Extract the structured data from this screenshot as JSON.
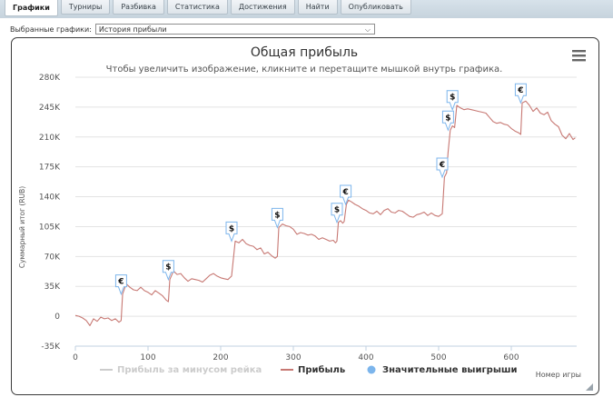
{
  "tabs": [
    "Графики",
    "Турниры",
    "Разбивка",
    "Статистика",
    "Достижения",
    "Найти",
    "Опубликовать"
  ],
  "active_tab": 0,
  "selector": {
    "label": "Выбранные графики:",
    "value": "История прибыли"
  },
  "chart_data": {
    "type": "line",
    "title": "Общая прибыль",
    "subtitle": "Чтобы увеличить изображение, кликните и перетащите мышкой внутрь графика.",
    "ylabel": "Суммарный итог (RUB)",
    "xlabel": "Номер игры",
    "ylim": [
      -35000,
      280000
    ],
    "xlim": [
      0,
      690
    ],
    "yticks": [
      -35000,
      0,
      35000,
      70000,
      105000,
      140000,
      175000,
      210000,
      245000,
      280000
    ],
    "ytick_labels": [
      "-35K",
      "0",
      "35K",
      "70K",
      "105K",
      "140K",
      "175K",
      "210K",
      "245K",
      "280K"
    ],
    "xticks": [
      0,
      100,
      200,
      300,
      400,
      500,
      600
    ],
    "grid": "horizontal",
    "legend_position": "bottom",
    "legend": [
      {
        "name": "Прибыль за минусом рейка",
        "color": "#cccccc",
        "style": "line",
        "hidden": true
      },
      {
        "name": "Прибыль",
        "color": "#c77873",
        "style": "line"
      },
      {
        "name": "Значительные выигрыши",
        "color": "#7cb5ec",
        "style": "marker"
      }
    ],
    "series": [
      {
        "name": "Прибыль",
        "color": "#c77873",
        "points": [
          [
            0,
            1000
          ],
          [
            5,
            0
          ],
          [
            10,
            -2000
          ],
          [
            15,
            -5000
          ],
          [
            20,
            -11000
          ],
          [
            25,
            -3000
          ],
          [
            30,
            -6000
          ],
          [
            35,
            -1000
          ],
          [
            40,
            -3000
          ],
          [
            45,
            -2000
          ],
          [
            50,
            -5000
          ],
          [
            55,
            -3000
          ],
          [
            60,
            -7000
          ],
          [
            63,
            -5000
          ],
          [
            65,
            26000
          ],
          [
            70,
            38000
          ],
          [
            75,
            34000
          ],
          [
            80,
            31000
          ],
          [
            85,
            30000
          ],
          [
            90,
            34000
          ],
          [
            95,
            30000
          ],
          [
            100,
            28000
          ],
          [
            105,
            25000
          ],
          [
            110,
            30000
          ],
          [
            115,
            27000
          ],
          [
            120,
            24000
          ],
          [
            125,
            19000
          ],
          [
            128,
            17000
          ],
          [
            130,
            43000
          ],
          [
            135,
            53000
          ],
          [
            140,
            49000
          ],
          [
            145,
            50000
          ],
          [
            150,
            45000
          ],
          [
            155,
            41000
          ],
          [
            160,
            44000
          ],
          [
            165,
            43000
          ],
          [
            170,
            42000
          ],
          [
            175,
            40000
          ],
          [
            180,
            44000
          ],
          [
            185,
            48000
          ],
          [
            190,
            50000
          ],
          [
            195,
            47000
          ],
          [
            200,
            45000
          ],
          [
            205,
            44000
          ],
          [
            210,
            43000
          ],
          [
            215,
            47000
          ],
          [
            220,
            88000
          ],
          [
            225,
            86000
          ],
          [
            230,
            90000
          ],
          [
            235,
            85000
          ],
          [
            240,
            83000
          ],
          [
            245,
            82000
          ],
          [
            250,
            78000
          ],
          [
            255,
            80000
          ],
          [
            260,
            73000
          ],
          [
            265,
            75000
          ],
          [
            270,
            71000
          ],
          [
            275,
            68000
          ],
          [
            278,
            70000
          ],
          [
            280,
            104000
          ],
          [
            285,
            108000
          ],
          [
            290,
            106000
          ],
          [
            295,
            105000
          ],
          [
            300,
            102000
          ],
          [
            305,
            96000
          ],
          [
            310,
            98000
          ],
          [
            315,
            97000
          ],
          [
            320,
            95000
          ],
          [
            325,
            96000
          ],
          [
            330,
            94000
          ],
          [
            335,
            90000
          ],
          [
            340,
            92000
          ],
          [
            345,
            90000
          ],
          [
            350,
            88000
          ],
          [
            355,
            89000
          ],
          [
            358,
            86000
          ],
          [
            360,
            88000
          ],
          [
            362,
            110000
          ],
          [
            365,
            112000
          ],
          [
            368,
            109000
          ],
          [
            370,
            111000
          ],
          [
            373,
            131000
          ],
          [
            376,
            136000
          ],
          [
            380,
            134000
          ],
          [
            385,
            131000
          ],
          [
            390,
            129000
          ],
          [
            395,
            126000
          ],
          [
            400,
            124000
          ],
          [
            405,
            121000
          ],
          [
            410,
            120000
          ],
          [
            415,
            123000
          ],
          [
            420,
            119000
          ],
          [
            425,
            124000
          ],
          [
            430,
            126000
          ],
          [
            435,
            122000
          ],
          [
            440,
            121000
          ],
          [
            445,
            124000
          ],
          [
            450,
            123000
          ],
          [
            455,
            120000
          ],
          [
            460,
            117000
          ],
          [
            465,
            116000
          ],
          [
            470,
            119000
          ],
          [
            475,
            120000
          ],
          [
            480,
            122000
          ],
          [
            485,
            118000
          ],
          [
            490,
            121000
          ],
          [
            495,
            118000
          ],
          [
            500,
            117000
          ],
          [
            505,
            120000
          ],
          [
            508,
            163000
          ],
          [
            511,
            168000
          ],
          [
            513,
            192000
          ],
          [
            516,
            218000
          ],
          [
            519,
            223000
          ],
          [
            522,
            221000
          ],
          [
            525,
            247000
          ],
          [
            530,
            244000
          ],
          [
            535,
            242000
          ],
          [
            540,
            243000
          ],
          [
            545,
            242000
          ],
          [
            550,
            241000
          ],
          [
            555,
            240000
          ],
          [
            560,
            239000
          ],
          [
            565,
            238000
          ],
          [
            570,
            233000
          ],
          [
            575,
            228000
          ],
          [
            580,
            226000
          ],
          [
            585,
            227000
          ],
          [
            590,
            225000
          ],
          [
            595,
            224000
          ],
          [
            600,
            220000
          ],
          [
            605,
            217000
          ],
          [
            610,
            215000
          ],
          [
            613,
            213000
          ],
          [
            615,
            250000
          ],
          [
            620,
            252000
          ],
          [
            625,
            247000
          ],
          [
            630,
            240000
          ],
          [
            635,
            244000
          ],
          [
            640,
            238000
          ],
          [
            645,
            236000
          ],
          [
            650,
            239000
          ],
          [
            655,
            229000
          ],
          [
            660,
            225000
          ],
          [
            665,
            222000
          ],
          [
            670,
            212000
          ],
          [
            675,
            208000
          ],
          [
            680,
            214000
          ],
          [
            685,
            207000
          ],
          [
            688,
            209000
          ]
        ]
      }
    ],
    "flags": [
      {
        "x": 63,
        "y": 26000,
        "symbol": "€"
      },
      {
        "x": 128,
        "y": 43000,
        "symbol": "$"
      },
      {
        "x": 215,
        "y": 88000,
        "symbol": "$"
      },
      {
        "x": 278,
        "y": 104000,
        "symbol": "$"
      },
      {
        "x": 360,
        "y": 110000,
        "symbol": "$"
      },
      {
        "x": 372,
        "y": 131000,
        "symbol": "€"
      },
      {
        "x": 505,
        "y": 163000,
        "symbol": "€"
      },
      {
        "x": 513,
        "y": 218000,
        "symbol": "$"
      },
      {
        "x": 519,
        "y": 242000,
        "symbol": "$"
      },
      {
        "x": 613,
        "y": 250000,
        "symbol": "€"
      }
    ]
  }
}
